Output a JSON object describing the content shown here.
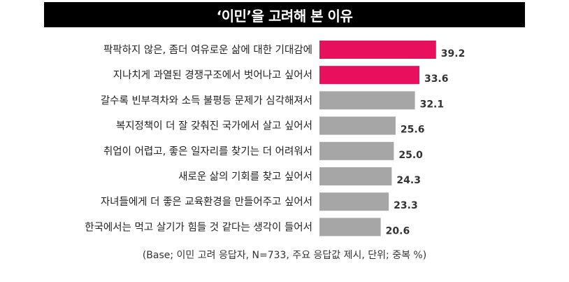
{
  "title": "‘이민’을 고려해 본 이유",
  "footnote": "(Base; 이민 고려 응답자, N=733, 주요 응답값 제시, 단위; 중복 %)",
  "colors": {
    "highlight": "#e8105d",
    "normal": "#a6a6a6",
    "title_bg": "#000000"
  },
  "chart_data": {
    "type": "bar",
    "orientation": "horizontal",
    "categories": [
      "팍팍하지 않은, 좀더 여유로운 삶에 대한 기대감에",
      "지나치게 과열된 경쟁구조에서 벗어나고 싶어서",
      "갈수록 빈부격차와 소득 불평등 문제가 심각해져서",
      "복지정책이 더 잘 갖춰진 국가에서 살고 싶어서",
      "취업이 어렵고, 좋은 일자리를 찾기는 더 어려워서",
      "새로운 삶의 기회를 찾고 싶어서",
      "자녀들에게 더 좋은 교육환경을 만들어주고 싶어서",
      "한국에서는 먹고 살기가 힘들 것 같다는 생각이 들어서"
    ],
    "values": [
      39.2,
      33.6,
      32.1,
      25.6,
      25.0,
      24.3,
      23.3,
      20.6
    ],
    "value_labels": [
      "39.2",
      "33.6",
      "32.1",
      "25.6",
      "25.0",
      "24.3",
      "23.3",
      "20.6"
    ],
    "highlighted": [
      true,
      true,
      false,
      false,
      false,
      false,
      false,
      false
    ],
    "xlim": [
      0,
      40
    ],
    "grid": false,
    "legend": "none"
  }
}
